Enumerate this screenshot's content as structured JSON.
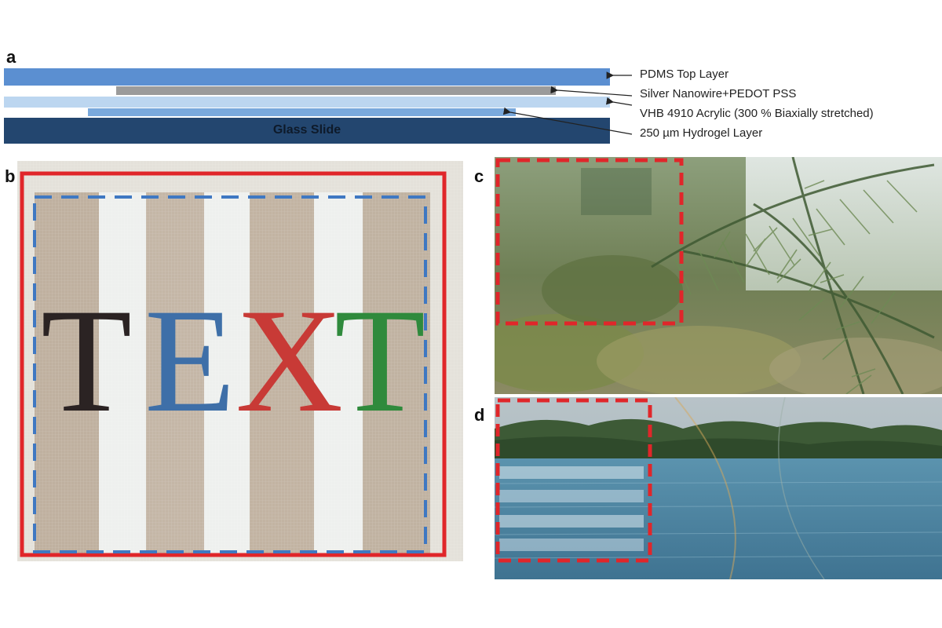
{
  "panels": {
    "a": "a",
    "b": "b",
    "c": "c",
    "d": "d"
  },
  "layers": {
    "pdms": "PDMS Top Layer",
    "silver": "Silver Nanowire+PEDOT PSS",
    "vhb": "VHB 4910 Acrylic (300 % Biaxially stretched)",
    "hydrogel": "250 µm Hydrogel Layer",
    "glass": "Glass Slide"
  },
  "panel_b": {
    "letters": [
      "T",
      "E",
      "X",
      "T"
    ],
    "letter_colors": [
      "#2b2323",
      "#3e6fa8",
      "#c83a36",
      "#2f8a3c"
    ]
  },
  "colors": {
    "pdms": "#5b8fd1",
    "silver": "#9b9b9b",
    "vhb": "#bcd6f0",
    "hydrogel": "#7aa9dc",
    "glass": "#23466f",
    "red_frame": "#e0262a",
    "blue_dash": "#3f78c2"
  }
}
